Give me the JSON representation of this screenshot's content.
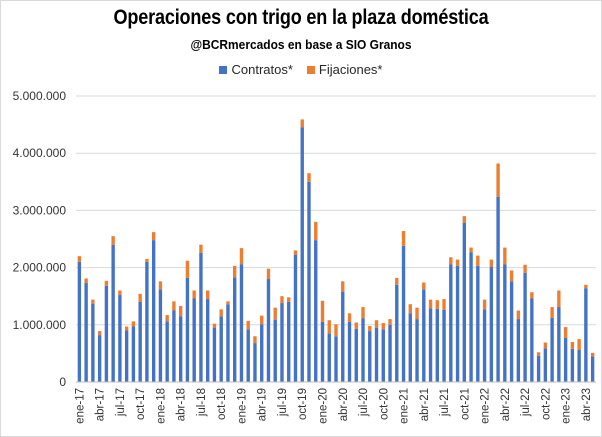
{
  "chart_data": {
    "type": "bar",
    "stacked": true,
    "title": "Operaciones con trigo en la plaza doméstica",
    "subtitle": "@BCRmercados en base a SIO Granos",
    "xlabel": "",
    "ylabel": "",
    "ylim": [
      0,
      5000000
    ],
    "yticks": [
      "0",
      "1.000.000",
      "2.000.000",
      "3.000.000",
      "4.000.000",
      "5.000.000"
    ],
    "ytick_values": [
      0,
      1000000,
      2000000,
      3000000,
      4000000,
      5000000
    ],
    "grid": true,
    "legend_position": "top-center",
    "x_labels": [
      "ene-17",
      "abr-17",
      "jul-17",
      "oct-17",
      "ene-18",
      "abr-18",
      "jul-18",
      "oct-18",
      "ene-19",
      "abr-19",
      "jul-19",
      "oct-19",
      "ene-20",
      "abr-20",
      "jul-20",
      "oct-20",
      "ene-21",
      "abr-21",
      "jul-21",
      "oct-21",
      "ene-22",
      "abr-22",
      "jul-22",
      "oct-22",
      "ene-23",
      "abr-23"
    ],
    "categories": [
      "ene-17",
      "feb-17",
      "mar-17",
      "abr-17",
      "may-17",
      "jun-17",
      "jul-17",
      "ago-17",
      "sep-17",
      "oct-17",
      "nov-17",
      "dic-17",
      "ene-18",
      "feb-18",
      "mar-18",
      "abr-18",
      "may-18",
      "jun-18",
      "jul-18",
      "ago-18",
      "sep-18",
      "oct-18",
      "nov-18",
      "dic-18",
      "ene-19",
      "feb-19",
      "mar-19",
      "abr-19",
      "may-19",
      "jun-19",
      "jul-19",
      "ago-19",
      "sep-19",
      "oct-19",
      "nov-19",
      "dic-19",
      "ene-20",
      "feb-20",
      "mar-20",
      "abr-20",
      "may-20",
      "jun-20",
      "jul-20",
      "ago-20",
      "sep-20",
      "oct-20",
      "nov-20",
      "dic-20",
      "ene-21",
      "feb-21",
      "mar-21",
      "abr-21",
      "may-21",
      "jun-21",
      "jul-21",
      "ago-21",
      "sep-21",
      "oct-21",
      "nov-21",
      "dic-21",
      "ene-22",
      "feb-22",
      "mar-22",
      "abr-22",
      "may-22",
      "jun-22",
      "jul-22",
      "ago-22",
      "sep-22",
      "oct-22",
      "nov-22",
      "dic-22",
      "ene-23",
      "feb-23",
      "mar-23",
      "abr-23",
      "may-23"
    ],
    "series": [
      {
        "name": "Contratos*",
        "color": "#4472c4",
        "values": [
          2100000,
          1730000,
          1370000,
          820000,
          1680000,
          2400000,
          1520000,
          900000,
          970000,
          1400000,
          2100000,
          2480000,
          1620000,
          1060000,
          1250000,
          1150000,
          1820000,
          1460000,
          2260000,
          1450000,
          950000,
          1150000,
          1360000,
          1830000,
          2060000,
          920000,
          680000,
          1010000,
          1800000,
          1090000,
          1380000,
          1400000,
          2220000,
          4450000,
          3500000,
          2480000,
          1050000,
          850000,
          800000,
          1580000,
          1050000,
          930000,
          1110000,
          890000,
          950000,
          920000,
          1000000,
          1700000,
          2380000,
          1200000,
          1100000,
          1620000,
          1290000,
          1280000,
          1260000,
          2060000,
          2030000,
          2780000,
          2270000,
          2030000,
          1270000,
          2010000,
          3240000,
          2060000,
          1760000,
          1100000,
          1910000,
          1460000,
          460000,
          590000,
          1120000,
          1310000,
          770000,
          580000,
          560000,
          1640000,
          450000
        ]
      },
      {
        "name": "Fijaciones*",
        "color": "#ed7d31",
        "values": [
          100000,
          80000,
          70000,
          70000,
          90000,
          150000,
          80000,
          70000,
          90000,
          140000,
          50000,
          140000,
          140000,
          110000,
          160000,
          180000,
          300000,
          140000,
          140000,
          150000,
          70000,
          120000,
          50000,
          200000,
          280000,
          150000,
          120000,
          150000,
          180000,
          210000,
          120000,
          80000,
          80000,
          140000,
          150000,
          320000,
          370000,
          230000,
          210000,
          180000,
          150000,
          110000,
          200000,
          90000,
          130000,
          110000,
          100000,
          120000,
          260000,
          160000,
          200000,
          120000,
          150000,
          150000,
          190000,
          120000,
          110000,
          120000,
          80000,
          180000,
          170000,
          130000,
          580000,
          290000,
          190000,
          150000,
          140000,
          110000,
          60000,
          100000,
          190000,
          290000,
          190000,
          120000,
          190000,
          60000,
          60000
        ]
      }
    ]
  }
}
